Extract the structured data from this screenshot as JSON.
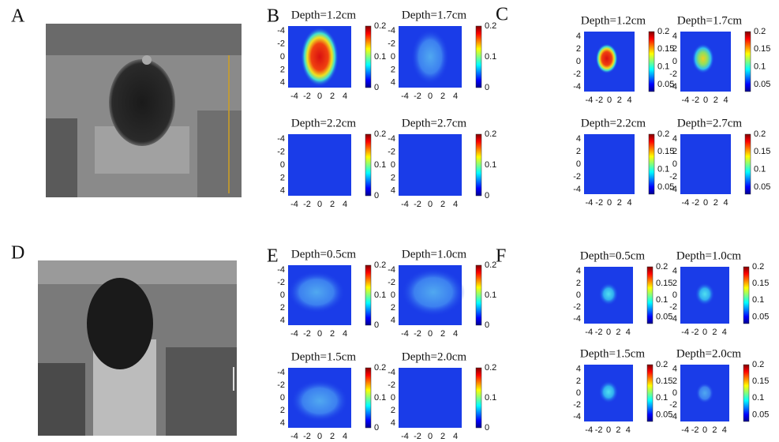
{
  "panels": [
    {
      "label": "A"
    },
    {
      "label": "B",
      "plots": [
        {
          "title": "Depth=1.2cm",
          "xticks": [
            -4,
            -2,
            0,
            2,
            4
          ],
          "yticks": [
            -4,
            -2,
            0,
            2,
            4
          ],
          "cbar_ticks": [
            0,
            0.1,
            0.2
          ]
        },
        {
          "title": "Depth=1.7cm",
          "xticks": [
            -4,
            -2,
            0,
            2,
            4
          ],
          "yticks": [
            -4,
            -2,
            0,
            2,
            4
          ],
          "cbar_ticks": [
            0,
            0.1,
            0.2
          ]
        },
        {
          "title": "Depth=2.2cm",
          "xticks": [
            -4,
            -2,
            0,
            2,
            4
          ],
          "yticks": [
            -4,
            -2,
            0,
            2,
            4
          ],
          "cbar_ticks": [
            0,
            0.1,
            0.2
          ]
        },
        {
          "title": "Depth=2.7cm",
          "xticks": [
            -4,
            -2,
            0,
            2,
            4
          ],
          "yticks": [
            -4,
            -2,
            0,
            2,
            4
          ],
          "cbar_ticks": [
            0,
            0.1,
            0.2
          ]
        }
      ]
    },
    {
      "label": "C",
      "plots": [
        {
          "title": "Depth=1.2cm",
          "xticks": [
            -4,
            -2,
            0,
            2,
            4
          ],
          "yticks": [
            -4,
            -2,
            0,
            2,
            4
          ],
          "cbar_ticks": [
            0.05,
            0.1,
            0.15,
            0.2
          ]
        },
        {
          "title": "Depth=1.7cm",
          "xticks": [
            -4,
            -2,
            0,
            2,
            4
          ],
          "yticks": [
            -4,
            -2,
            0,
            2,
            4
          ],
          "cbar_ticks": [
            0.05,
            0.1,
            0.15,
            0.2
          ]
        },
        {
          "title": "Depth=2.2cm",
          "xticks": [
            -4,
            -2,
            0,
            2,
            4
          ],
          "yticks": [
            -4,
            -2,
            0,
            2,
            4
          ],
          "cbar_ticks": [
            0.05,
            0.1,
            0.15,
            0.2
          ]
        },
        {
          "title": "Depth=2.7cm",
          "xticks": [
            -4,
            -2,
            0,
            2,
            4
          ],
          "yticks": [
            -4,
            -2,
            0,
            2,
            4
          ],
          "cbar_ticks": [
            0.05,
            0.1,
            0.15,
            0.2
          ]
        }
      ]
    },
    {
      "label": "D"
    },
    {
      "label": "E",
      "plots": [
        {
          "title": "Depth=0.5cm",
          "xticks": [
            -4,
            -2,
            0,
            2,
            4
          ],
          "yticks": [
            -4,
            -2,
            0,
            2,
            4
          ],
          "cbar_ticks": [
            0,
            0.1,
            0.2
          ]
        },
        {
          "title": "Depth=1.0cm",
          "xticks": [
            -4,
            -2,
            0,
            2,
            4
          ],
          "yticks": [
            -4,
            -2,
            0,
            2,
            4
          ],
          "cbar_ticks": [
            0,
            0.1,
            0.2
          ]
        },
        {
          "title": "Depth=1.5cm",
          "xticks": [
            -4,
            -2,
            0,
            2,
            4
          ],
          "yticks": [
            -4,
            -2,
            0,
            2,
            4
          ],
          "cbar_ticks": [
            0,
            0.1,
            0.2
          ]
        },
        {
          "title": "Depth=2.0cm",
          "xticks": [
            -4,
            -2,
            0,
            2,
            4
          ],
          "yticks": [
            -4,
            -2,
            0,
            2,
            4
          ],
          "cbar_ticks": [
            0,
            0.1,
            0.2
          ]
        }
      ]
    },
    {
      "label": "F",
      "plots": [
        {
          "title": "Depth=0.5cm",
          "xticks": [
            -4,
            -2,
            0,
            2,
            4
          ],
          "yticks": [
            -4,
            -2,
            0,
            2,
            4
          ],
          "cbar_ticks": [
            0.05,
            0.1,
            0.15,
            0.2
          ]
        },
        {
          "title": "Depth=1.0cm",
          "xticks": [
            -4,
            -2,
            0,
            2,
            4
          ],
          "yticks": [
            -4,
            -2,
            0,
            2,
            4
          ],
          "cbar_ticks": [
            0.05,
            0.1,
            0.15,
            0.2
          ]
        },
        {
          "title": "Depth=1.5cm",
          "xticks": [
            -4,
            -2,
            0,
            2,
            4
          ],
          "yticks": [
            -4,
            -2,
            0,
            2,
            4
          ],
          "cbar_ticks": [
            0.05,
            0.1,
            0.15,
            0.2
          ]
        },
        {
          "title": "Depth=2.0cm",
          "xticks": [
            -4,
            -2,
            0,
            2,
            4
          ],
          "yticks": [
            -4,
            -2,
            0,
            2,
            4
          ],
          "cbar_ticks": [
            0.05,
            0.1,
            0.15,
            0.2
          ]
        }
      ]
    }
  ]
}
